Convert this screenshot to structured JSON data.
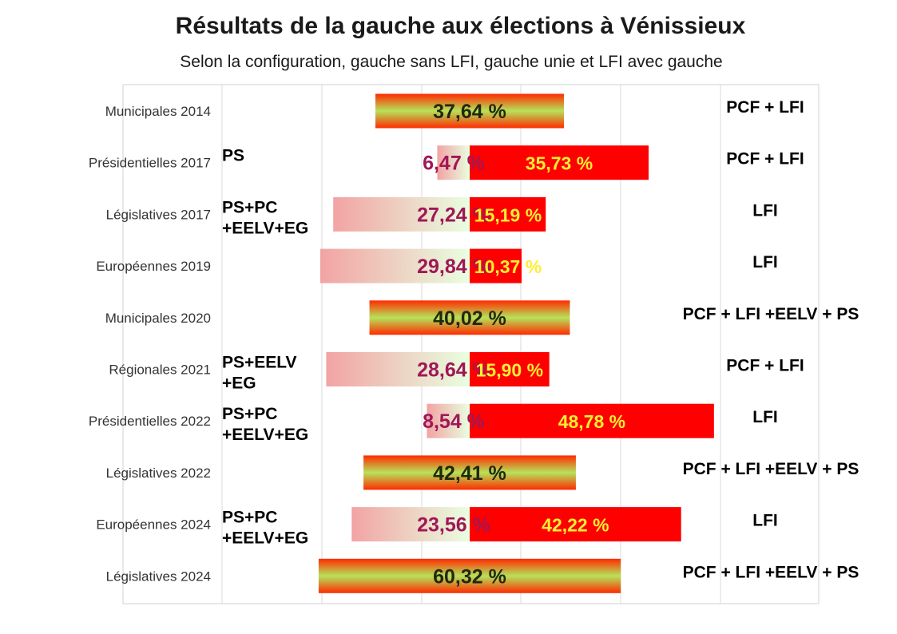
{
  "colors": {
    "lfi_red": "#ff0000",
    "gauche_green": "#b6e35a",
    "gauche_edge": "#ff2a00",
    "others_pink": "#f2a3a3",
    "others_light": "#e8ffe0",
    "others_text": "#a01757",
    "lfi_text": "#ffee33",
    "gauche_text": "#1e2a10"
  },
  "chart_data": {
    "type": "bar",
    "title": "Résultats de la gauche aux élections à Vénissieux",
    "subtitle": "Selon la configuration, gauche sans LFI, gauche unie et LFI avec gauche",
    "xlim": [
      -30,
      60
    ],
    "rows": [
      {
        "category": "Municipales 2014",
        "mode": "united",
        "united": 37.64,
        "united_label": "37,64 %",
        "right_note": "PCF + LFI"
      },
      {
        "category": "Présidentielles 2017",
        "mode": "split",
        "others": 6.47,
        "others_label": "6,47 %",
        "lfi": 35.73,
        "lfi_label": "35,73 %",
        "left_note": [
          "PS"
        ],
        "right_note": "PCF + LFI"
      },
      {
        "category": "Législatives 2017",
        "mode": "split",
        "others": 27.24,
        "others_label": "27,24 %",
        "lfi": 15.19,
        "lfi_label": "15,19 %",
        "left_note": [
          "PS+PC",
          "+EELV+EG"
        ],
        "right_note": "LFI"
      },
      {
        "category": "Européennes 2019",
        "mode": "split",
        "others": 29.84,
        "others_label": "29,84 %",
        "lfi": 10.37,
        "lfi_label": "10,37 %",
        "right_note": "LFI"
      },
      {
        "category": "Municipales 2020",
        "mode": "united",
        "united": 40.02,
        "united_label": "40,02 %",
        "right_note": "PCF + LFI +EELV + PS"
      },
      {
        "category": "Régionales 2021",
        "mode": "split",
        "others": 28.64,
        "others_label": "28,64 %",
        "lfi": 15.9,
        "lfi_label": "15,90 %",
        "left_note": [
          "PS+EELV",
          "+EG"
        ],
        "right_note": "PCF + LFI"
      },
      {
        "category": "Présidentielles 2022",
        "mode": "split",
        "others": 8.54,
        "others_label": "8,54 %",
        "lfi": 48.78,
        "lfi_label": "48,78 %",
        "left_note": [
          "PS+PC",
          " +EELV+EG"
        ],
        "right_note": "LFI"
      },
      {
        "category": "Législatives 2022",
        "mode": "united",
        "united": 42.41,
        "united_label": "42,41 %",
        "right_note": "PCF + LFI +EELV + PS"
      },
      {
        "category": "Européennes 2024",
        "mode": "split",
        "others": 23.56,
        "others_label": "23,56 %",
        "lfi": 42.22,
        "lfi_label": "42,22 %",
        "left_note": [
          "PS+PC",
          "+EELV+EG"
        ],
        "right_note": "LFI"
      },
      {
        "category": "Législatives 2024",
        "mode": "united",
        "united": 60.32,
        "united_label": "60,32 %",
        "right_note": "PCF + LFI +EELV + PS"
      }
    ]
  }
}
